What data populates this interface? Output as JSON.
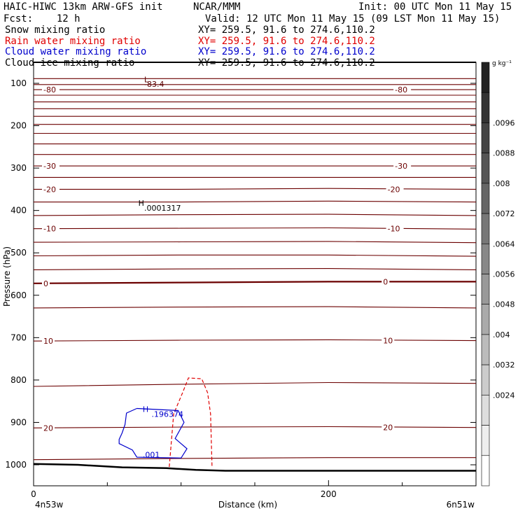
{
  "header": {
    "model": "HAIC-HIWC 13km ARW-GFS init",
    "org": "NCAR/MMM",
    "init": "Init: 00 UTC Mon 11 May 15",
    "fcst": "Fcst:    12 h",
    "valid": "Valid: 12 UTC Mon 11 May 15 (09 LST Mon 11 May 15)",
    "fields": [
      {
        "name": "Snow mixing ratio",
        "xy": "XY= 259.5, 91.6 to 274.6,110.2",
        "color": "#000000"
      },
      {
        "name": "Rain water mixing ratio",
        "xy": "XY= 259.5, 91.6 to 274.6,110.2",
        "color": "#e00000"
      },
      {
        "name": "Cloud water mixing ratio",
        "xy": "XY= 259.5, 91.6 to 274.6,110.2",
        "color": "#0000cc"
      },
      {
        "name": "Cloud ice mixing ratio",
        "xy": "XY= 259.5, 91.6 to 274.6,110.2",
        "color": "#000000"
      }
    ]
  },
  "chart_data": {
    "type": "contour-cross-section",
    "xlabel": "Distance (km)",
    "ylabel": "Pressure (hPa)",
    "x_range": [
      0,
      300
    ],
    "y_range": [
      1050,
      80
    ],
    "x_ticks": [
      {
        "value": 0,
        "label": "0"
      },
      {
        "value": 200,
        "label": "200"
      }
    ],
    "y_ticks": [
      {
        "value": 100,
        "label": "100"
      },
      {
        "value": 200,
        "label": "200"
      },
      {
        "value": 300,
        "label": "300"
      },
      {
        "value": 400,
        "label": "400"
      },
      {
        "value": 500,
        "label": "500"
      },
      {
        "value": 600,
        "label": "600"
      },
      {
        "value": 700,
        "label": "700"
      },
      {
        "value": 800,
        "label": "800"
      },
      {
        "value": 900,
        "label": "900"
      },
      {
        "value": 1000,
        "label": "1000"
      }
    ],
    "x_end_labels": {
      "left": "4n53w",
      "right": "6n51w"
    },
    "temperature_contours": [
      {
        "p": [
          89,
          89,
          89,
          89
        ]
      },
      {
        "p": [
          103,
          103,
          103,
          103
        ]
      },
      {
        "p": [
          115,
          115,
          115,
          115
        ],
        "label": "-80"
      },
      {
        "p": [
          128,
          128,
          128,
          128
        ]
      },
      {
        "p": [
          144,
          144,
          144,
          144
        ]
      },
      {
        "p": [
          160,
          160,
          160,
          160
        ]
      },
      {
        "p": [
          178,
          178,
          178,
          178
        ]
      },
      {
        "p": [
          197,
          197,
          197,
          197
        ]
      },
      {
        "p": [
          218,
          218,
          218,
          218
        ]
      },
      {
        "p": [
          243,
          243,
          243,
          243
        ]
      },
      {
        "p": [
          268,
          268,
          268,
          268
        ]
      },
      {
        "p": [
          295,
          295,
          295,
          295
        ],
        "label": "-30"
      },
      {
        "p": [
          322,
          322,
          322,
          322
        ]
      },
      {
        "p": [
          350,
          350,
          348,
          350
        ],
        "label": "-20"
      },
      {
        "p": [
          380,
          380,
          378,
          380
        ]
      },
      {
        "p": [
          412,
          410,
          409,
          412
        ]
      },
      {
        "p": [
          443,
          442,
          441,
          444
        ],
        "label": "-10"
      },
      {
        "p": [
          475,
          474,
          473,
          476
        ]
      },
      {
        "p": [
          507,
          505,
          505,
          508
        ]
      },
      {
        "p": [
          540,
          538,
          537,
          540
        ]
      },
      {
        "p": [
          572,
          570,
          568,
          568
        ],
        "label": "0",
        "bold": true
      },
      {
        "p": [
          630,
          628,
          627,
          630
        ]
      },
      {
        "p": [
          708,
          706,
          705,
          707
        ],
        "label": "10"
      },
      {
        "p": [
          815,
          810,
          806,
          808
        ]
      },
      {
        "p": [
          913,
          911,
          910,
          912
        ],
        "label": "20"
      },
      {
        "p": [
          988,
          985,
          983,
          983
        ]
      }
    ],
    "contour_x": [
      0,
      100,
      200,
      300
    ],
    "terrain_p": [
      [
        0,
        998
      ],
      [
        30,
        1000
      ],
      [
        60,
        1006
      ],
      [
        90,
        1008
      ],
      [
        110,
        1012
      ],
      [
        130,
        1014
      ],
      [
        160,
        1014
      ],
      [
        200,
        1014
      ],
      [
        250,
        1014
      ],
      [
        300,
        1014
      ]
    ],
    "rain_contour": [
      [
        92,
        1005
      ],
      [
        95,
        880
      ],
      [
        101,
        830
      ],
      [
        105,
        795
      ],
      [
        114,
        797
      ],
      [
        118,
        830
      ],
      [
        120,
        880
      ],
      [
        121,
        1005
      ]
    ],
    "cloud_contour": [
      [
        70,
        867
      ],
      [
        98,
        872
      ],
      [
        102,
        900
      ],
      [
        96,
        938
      ],
      [
        104,
        962
      ],
      [
        100,
        984
      ],
      [
        70,
        982
      ],
      [
        67,
        965
      ],
      [
        58,
        950
      ],
      [
        58,
        940
      ],
      [
        60,
        925
      ],
      [
        62,
        905
      ],
      [
        63,
        878
      ],
      [
        70,
        867
      ]
    ],
    "annotations": [
      {
        "text": "L",
        "x": 75,
        "p": 91,
        "color": "#5a0000"
      },
      {
        "text": "-83.4",
        "x": 75,
        "p": 102,
        "color": "#5a0000"
      },
      {
        "text": "H",
        "x": 71,
        "p": 382,
        "color": "#000000"
      },
      {
        "text": ".0001317",
        "x": 75,
        "p": 394,
        "color": "#000000"
      },
      {
        "text": "H",
        "x": 74,
        "p": 869,
        "color": "#0000cc"
      },
      {
        "text": ".196374",
        "x": 80,
        "p": 880,
        "color": "#0000cc"
      },
      {
        "text": ".001",
        "x": 74,
        "p": 976,
        "color": "#0000cc"
      }
    ],
    "right_labels": [
      {
        "text": "-80",
        "x": 245,
        "p": 115
      },
      {
        "text": "-30",
        "x": 245,
        "p": 295
      },
      {
        "text": "-20",
        "x": 240,
        "p": 350
      },
      {
        "text": "-10",
        "x": 240,
        "p": 443
      },
      {
        "text": "0",
        "x": 237,
        "p": 568
      },
      {
        "text": "10",
        "x": 237,
        "p": 707
      },
      {
        "text": "20",
        "x": 237,
        "p": 912
      }
    ],
    "colorbar": {
      "unit": "g kg⁻¹",
      "levels": [
        ".0096",
        ".0088",
        ".008",
        ".0072",
        ".0064",
        ".0056",
        ".0048",
        ".004",
        ".0032",
        ".0024"
      ],
      "grays": [
        "#222222",
        "#333333",
        "#444444",
        "#555555",
        "#666666",
        "#777777",
        "#888888",
        "#999999",
        "#aaaaaa",
        "#bbbbbb",
        "#cccccc",
        "#dddddd",
        "#eeeeee",
        "#ffffff"
      ]
    }
  }
}
